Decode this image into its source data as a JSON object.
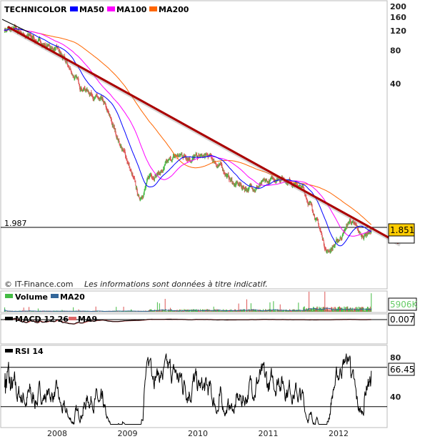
{
  "chart_data": [
    {
      "type": "line",
      "title": "TECHNICOLOR",
      "scale": "log",
      "y_ticks": [
        200,
        160,
        120,
        80,
        40
      ],
      "x_ticks": [
        "2008",
        "2009",
        "2010",
        "2011",
        "2012"
      ],
      "legend": [
        {
          "name": "MA50",
          "color": "#0000ff"
        },
        {
          "name": "MA100",
          "color": "#ff00ff"
        },
        {
          "name": "MA200",
          "color": "#ff6600"
        }
      ],
      "reference_line": {
        "label": "1.987",
        "value": 1.987
      },
      "last_value": "1.851",
      "trendline": {
        "from": [
          "2007-04",
          125
        ],
        "to": [
          "2012-07",
          1.6
        ],
        "color": "#aa0000"
      },
      "up_color": "#44bb44",
      "down_color": "#dd5555",
      "points": [
        [
          "2007-04",
          125
        ],
        [
          "2007-07",
          115
        ],
        [
          "2007-10",
          95
        ],
        [
          "2008-01",
          80
        ],
        [
          "2008-03",
          55
        ],
        [
          "2008-05",
          38
        ],
        [
          "2008-07",
          33
        ],
        [
          "2008-09",
          25
        ],
        [
          "2008-11",
          14
        ],
        [
          "2009-01",
          8
        ],
        [
          "2009-03",
          3.5
        ],
        [
          "2009-05",
          6
        ],
        [
          "2009-07",
          6.5
        ],
        [
          "2009-09",
          8.5
        ],
        [
          "2009-11",
          9
        ],
        [
          "2010-01",
          8.5
        ],
        [
          "2010-03",
          8.5
        ],
        [
          "2010-05",
          7
        ],
        [
          "2010-07",
          5
        ],
        [
          "2010-09",
          4.5
        ],
        [
          "2010-11",
          4.7
        ],
        [
          "2011-01",
          5.0
        ],
        [
          "2011-03",
          5.8
        ],
        [
          "2011-05",
          5.3
        ],
        [
          "2011-07",
          4.3
        ],
        [
          "2011-09",
          2.6
        ],
        [
          "2011-11",
          1.2
        ],
        [
          "2012-01",
          1.5
        ],
        [
          "2012-03",
          2.3
        ],
        [
          "2012-05",
          1.6
        ],
        [
          "2012-06",
          1.851
        ]
      ]
    },
    {
      "type": "bar",
      "legend": [
        {
          "name": "Volume",
          "color": "#44bb44"
        },
        {
          "name": "MA20",
          "color": "#336699"
        }
      ],
      "last_value": "5906K"
    },
    {
      "type": "line",
      "legend": [
        {
          "name": "MACD 12 26",
          "color": "#000000"
        },
        {
          "name": "MA9",
          "color": "#dd6666"
        }
      ],
      "last_value": "0.007"
    },
    {
      "type": "line",
      "legend": [
        {
          "name": "RSI 14",
          "color": "#000000"
        }
      ],
      "y_ticks": [
        80,
        40
      ],
      "levels": [
        70,
        30
      ],
      "last_value": "66.45"
    }
  ],
  "footer": {
    "copyright": "© IT-Finance.com",
    "disclaimer": "Les informations sont données à titre indicatif."
  }
}
